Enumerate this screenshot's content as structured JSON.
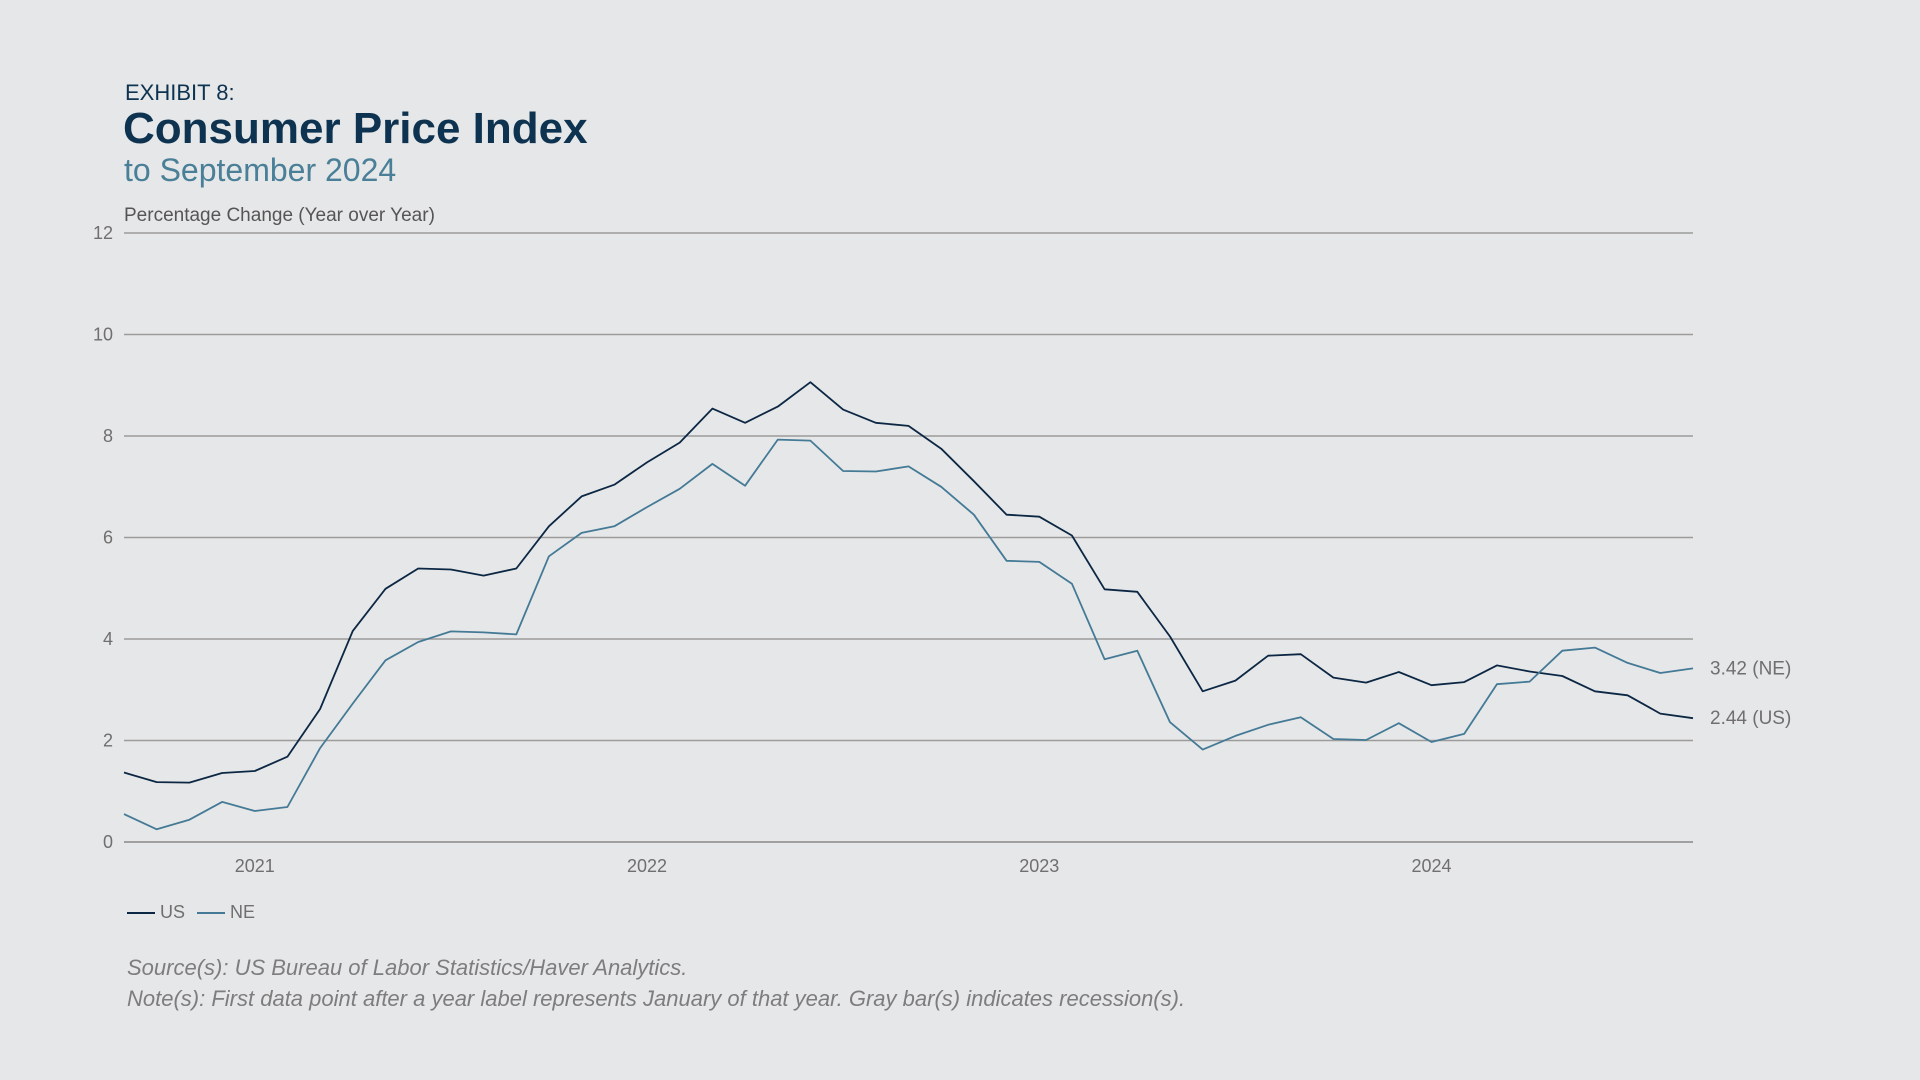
{
  "header": {
    "exhibit": "EXHIBIT 8:",
    "title": "Consumer Price Index",
    "subtitle": "to September 2024"
  },
  "chart_data": {
    "type": "line",
    "ylabel": "Percentage Change (Year over Year)",
    "ylim": [
      0,
      12
    ],
    "yticks": [
      0,
      2,
      4,
      6,
      8,
      10,
      12
    ],
    "grid": true,
    "legend_position": "bottom-left",
    "x_start": "2020-09",
    "x_end": "2024-09",
    "year_ticks": [
      {
        "label": "2021",
        "date": "2021-01"
      },
      {
        "label": "2022",
        "date": "2022-01"
      },
      {
        "label": "2023",
        "date": "2023-01"
      },
      {
        "label": "2024",
        "date": "2024-01"
      }
    ],
    "series": [
      {
        "name": "US",
        "color": "#0c2744",
        "end_label": "2.44 (US)",
        "values": [
          1.37,
          1.18,
          1.17,
          1.36,
          1.4,
          1.68,
          2.62,
          4.16,
          4.99,
          5.39,
          5.37,
          5.25,
          5.39,
          6.22,
          6.81,
          7.04,
          7.48,
          7.87,
          8.54,
          8.26,
          8.58,
          9.06,
          8.52,
          8.26,
          8.2,
          7.75,
          7.11,
          6.45,
          6.41,
          6.04,
          4.98,
          4.93,
          4.05,
          2.97,
          3.18,
          3.67,
          3.7,
          3.24,
          3.14,
          3.35,
          3.09,
          3.15,
          3.48,
          3.36,
          3.27,
          2.97,
          2.89,
          2.53,
          2.44
        ]
      },
      {
        "name": "NE",
        "color": "#447a96",
        "end_label": "3.42 (NE)",
        "values": [
          0.55,
          0.25,
          0.44,
          0.79,
          0.61,
          0.69,
          1.85,
          2.73,
          3.58,
          3.94,
          4.15,
          4.13,
          4.09,
          5.63,
          6.09,
          6.22,
          6.6,
          6.96,
          7.45,
          7.02,
          7.93,
          7.91,
          7.31,
          7.3,
          7.4,
          7.0,
          6.45,
          5.54,
          5.52,
          5.09,
          3.6,
          3.77,
          2.36,
          1.82,
          2.09,
          2.31,
          2.46,
          2.03,
          2.01,
          2.34,
          1.97,
          2.13,
          3.11,
          3.16,
          3.77,
          3.83,
          3.53,
          3.33,
          3.42
        ]
      }
    ]
  },
  "legend": [
    {
      "label": "US",
      "color": "#0c2744"
    },
    {
      "label": "NE",
      "color": "#447a96"
    }
  ],
  "notes": {
    "source": "Source(s): US Bureau of Labor Statistics/Haver Analytics.",
    "note": "Note(s): First data point after a year label represents January of that year. Gray bar(s) indicates recession(s)."
  }
}
